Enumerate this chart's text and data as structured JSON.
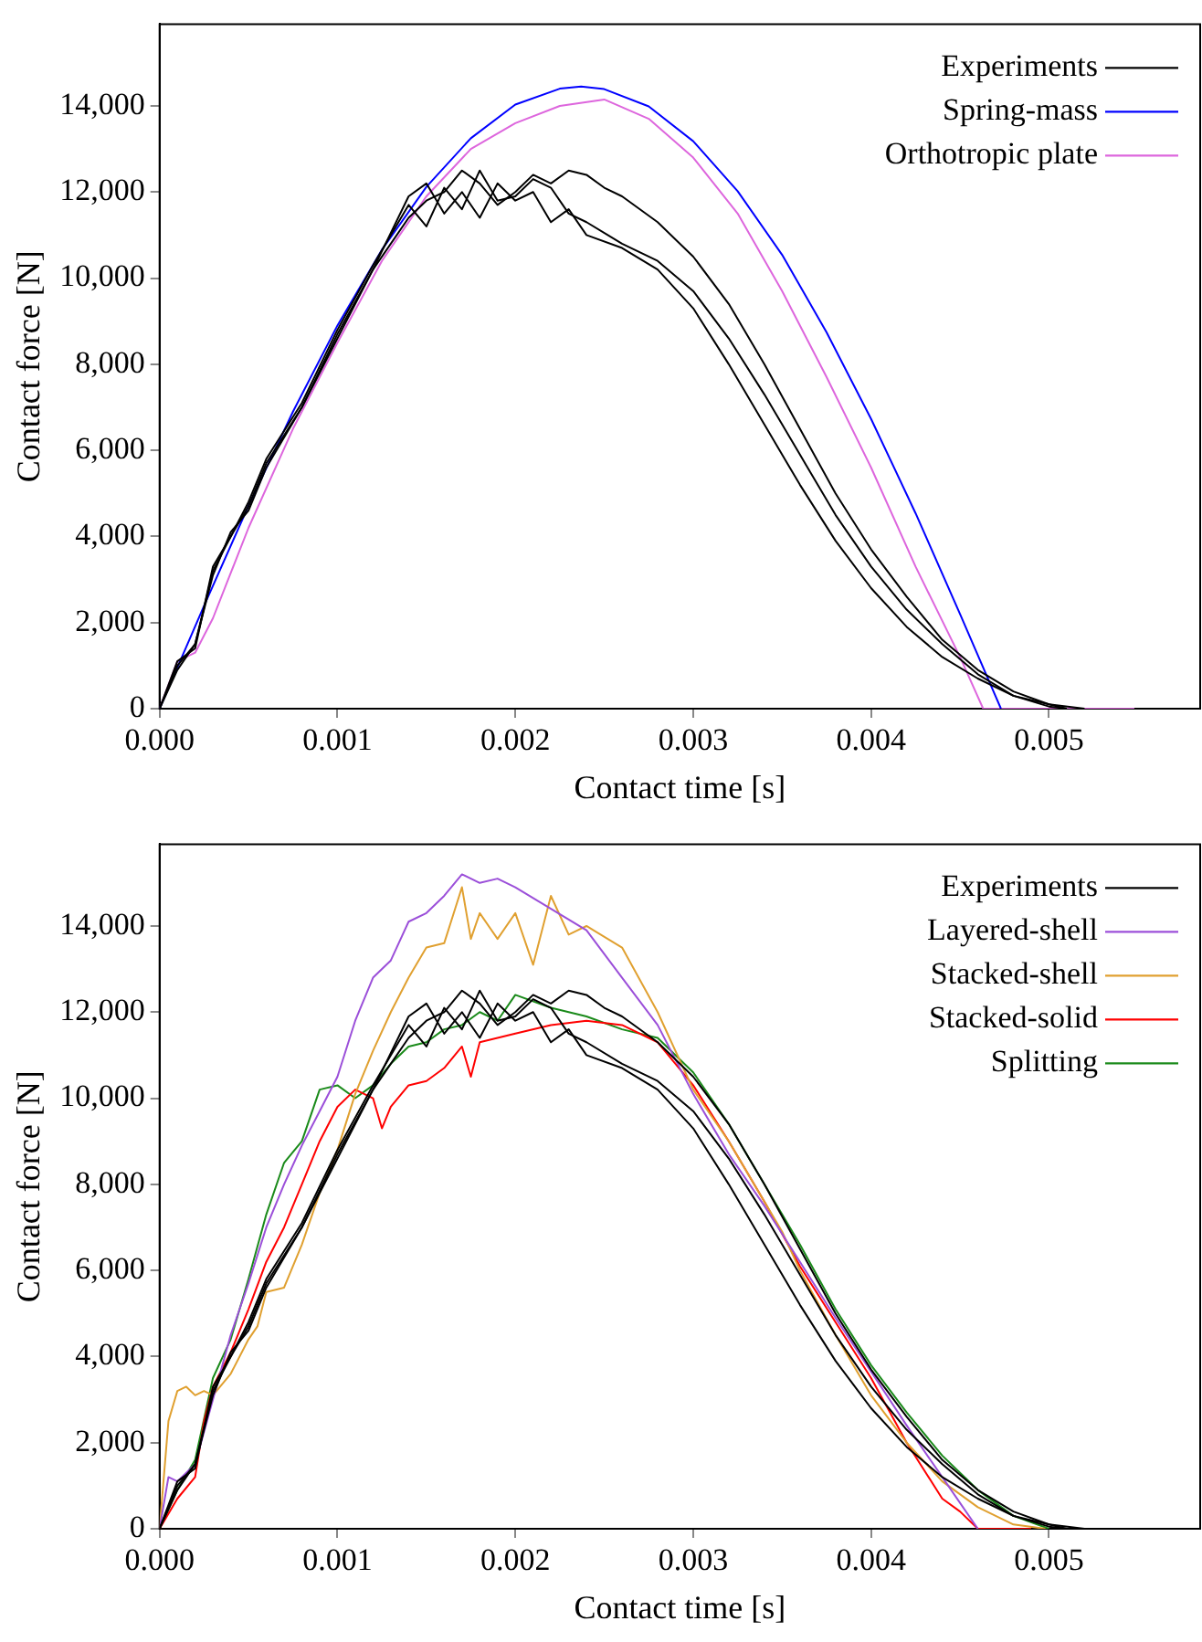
{
  "chart_data": [
    {
      "type": "line",
      "xlabel": "Contact time [s]",
      "ylabel": "Contact force [N]",
      "xlim": [
        0,
        0.00585
      ],
      "ylim": [
        0,
        15900
      ],
      "xticks": [
        {
          "value": 0,
          "label": "0.000"
        },
        {
          "value": 0.001,
          "label": "0.001"
        },
        {
          "value": 0.002,
          "label": "0.002"
        },
        {
          "value": 0.003,
          "label": "0.003"
        },
        {
          "value": 0.004,
          "label": "0.004"
        },
        {
          "value": 0.005,
          "label": "0.005"
        }
      ],
      "yticks": [
        {
          "value": 0,
          "label": "0"
        },
        {
          "value": 2000,
          "label": "2,000"
        },
        {
          "value": 4000,
          "label": "4,000"
        },
        {
          "value": 6000,
          "label": "6,000"
        },
        {
          "value": 8000,
          "label": "8,000"
        },
        {
          "value": 10000,
          "label": "10,000"
        },
        {
          "value": 12000,
          "label": "12,000"
        },
        {
          "value": 14000,
          "label": "14,000"
        }
      ],
      "grid": false,
      "legend": "top right",
      "marker": "none",
      "line_style": "solid",
      "series": [
        {
          "name": "Experiments",
          "color": "#000000",
          "x": [
            0,
            0.0001,
            0.0002,
            0.0003,
            0.0004,
            0.0005,
            0.0006,
            0.0008,
            0.001,
            0.0012,
            0.0014,
            0.0015,
            0.0016,
            0.0017,
            0.0018,
            0.0019,
            0.002,
            0.0021,
            0.0022,
            0.0023,
            0.0024,
            0.0025,
            0.0026,
            0.0028,
            0.003,
            0.0032,
            0.0034,
            0.0036,
            0.0038,
            0.004,
            0.0042,
            0.0044,
            0.0046,
            0.0048,
            0.005,
            0.0052
          ],
          "values": [
            0,
            1000,
            1500,
            3200,
            4000,
            4700,
            5700,
            7000,
            8700,
            10200,
            11400,
            11800,
            12000,
            12500,
            12200,
            11700,
            12000,
            12400,
            12200,
            12500,
            12400,
            12100,
            11900,
            11300,
            10500,
            9400,
            8000,
            6500,
            5000,
            3700,
            2600,
            1600,
            900,
            400,
            100,
            0
          ]
        },
        {
          "color": "#000000",
          "x": [
            0,
            0.0001,
            0.0002,
            0.0003,
            0.0004,
            0.0005,
            0.0006,
            0.0008,
            0.001,
            0.0012,
            0.0014,
            0.0015,
            0.0016,
            0.0017,
            0.0018,
            0.0019,
            0.002,
            0.0021,
            0.0022,
            0.0023,
            0.0024,
            0.0026,
            0.0028,
            0.003,
            0.0032,
            0.0034,
            0.0036,
            0.0038,
            0.004,
            0.0042,
            0.0044,
            0.0046,
            0.0048,
            0.005,
            0.0051
          ],
          "values": [
            0,
            1100,
            1400,
            3300,
            4000,
            4800,
            5800,
            7100,
            8800,
            10300,
            11700,
            11200,
            12100,
            11600,
            12500,
            11800,
            11900,
            12300,
            12100,
            11500,
            11300,
            10800,
            10400,
            9700,
            8600,
            7300,
            5900,
            4500,
            3300,
            2300,
            1500,
            800,
            300,
            50,
            0
          ]
        },
        {
          "color": "#000000",
          "x": [
            0,
            0.0001,
            0.0002,
            0.0003,
            0.0004,
            0.0005,
            0.0006,
            0.0008,
            0.001,
            0.0012,
            0.0014,
            0.0015,
            0.0016,
            0.0017,
            0.0018,
            0.0019,
            0.002,
            0.0021,
            0.0022,
            0.0023,
            0.0024,
            0.0026,
            0.0028,
            0.003,
            0.0032,
            0.0034,
            0.0036,
            0.0038,
            0.004,
            0.0042,
            0.0044,
            0.0046,
            0.0048,
            0.005,
            0.0051
          ],
          "values": [
            0,
            900,
            1500,
            3100,
            4100,
            4600,
            5600,
            7000,
            8600,
            10200,
            11900,
            12200,
            11500,
            12000,
            11400,
            12200,
            11800,
            12000,
            11300,
            11600,
            11000,
            10700,
            10200,
            9300,
            8000,
            6600,
            5200,
            3900,
            2800,
            1900,
            1200,
            700,
            300,
            100,
            0
          ]
        },
        {
          "name": "Spring-mass",
          "color": "#0000ff",
          "x": [
            0,
            0.00025,
            0.0005,
            0.00075,
            0.001,
            0.00125,
            0.0015,
            0.00175,
            0.002,
            0.00225,
            0.00237,
            0.0025,
            0.00275,
            0.003,
            0.00325,
            0.0035,
            0.00375,
            0.004,
            0.00425,
            0.0045,
            0.00473
          ],
          "values": [
            0,
            2390,
            4710,
            6900,
            8900,
            10660,
            12120,
            13250,
            14030,
            14400,
            14450,
            14390,
            13990,
            13180,
            12020,
            10540,
            8740,
            6730,
            4540,
            2200,
            0
          ]
        },
        {
          "name": "Orthotropic plate",
          "color": "#dd66dd",
          "x": [
            0,
            0.0001,
            0.0002,
            0.0003,
            0.0005,
            0.00075,
            0.001,
            0.00125,
            0.0015,
            0.00175,
            0.002,
            0.00225,
            0.0025,
            0.00275,
            0.003,
            0.00325,
            0.0035,
            0.00375,
            0.004,
            0.00425,
            0.0045,
            0.00463,
            0.00548
          ],
          "values": [
            0,
            1100,
            1300,
            2100,
            4200,
            6500,
            8500,
            10400,
            11900,
            13000,
            13600,
            14000,
            14150,
            13700,
            12800,
            11500,
            9700,
            7700,
            5600,
            3300,
            1200,
            0,
            0
          ]
        }
      ]
    },
    {
      "type": "line",
      "xlabel": "Contact time [s]",
      "ylabel": "Contact force [N]",
      "xlim": [
        0,
        0.00585
      ],
      "ylim": [
        0,
        15900
      ],
      "xticks": [
        {
          "value": 0,
          "label": "0.000"
        },
        {
          "value": 0.001,
          "label": "0.001"
        },
        {
          "value": 0.002,
          "label": "0.002"
        },
        {
          "value": 0.003,
          "label": "0.003"
        },
        {
          "value": 0.004,
          "label": "0.004"
        },
        {
          "value": 0.005,
          "label": "0.005"
        }
      ],
      "yticks": [
        {
          "value": 0,
          "label": "0"
        },
        {
          "value": 2000,
          "label": "2,000"
        },
        {
          "value": 4000,
          "label": "4,000"
        },
        {
          "value": 6000,
          "label": "6,000"
        },
        {
          "value": 8000,
          "label": "8,000"
        },
        {
          "value": 10000,
          "label": "10,000"
        },
        {
          "value": 12000,
          "label": "12,000"
        },
        {
          "value": 14000,
          "label": "14,000"
        }
      ],
      "grid": false,
      "legend": "top right",
      "marker": "none",
      "line_style": "solid",
      "series": [
        {
          "name": "Experiments",
          "color": "#000000",
          "x": [
            0,
            0.0001,
            0.0002,
            0.0003,
            0.0004,
            0.0005,
            0.0006,
            0.0008,
            0.001,
            0.0012,
            0.0014,
            0.0015,
            0.0016,
            0.0017,
            0.0018,
            0.0019,
            0.002,
            0.0021,
            0.0022,
            0.0023,
            0.0024,
            0.0025,
            0.0026,
            0.0028,
            0.003,
            0.0032,
            0.0034,
            0.0036,
            0.0038,
            0.004,
            0.0042,
            0.0044,
            0.0046,
            0.0048,
            0.005,
            0.0052
          ],
          "values": [
            0,
            1000,
            1500,
            3200,
            4000,
            4700,
            5700,
            7000,
            8700,
            10200,
            11400,
            11800,
            12000,
            12500,
            12200,
            11700,
            12000,
            12400,
            12200,
            12500,
            12400,
            12100,
            11900,
            11300,
            10500,
            9400,
            8000,
            6500,
            5000,
            3700,
            2600,
            1600,
            900,
            400,
            100,
            0
          ]
        },
        {
          "color": "#000000",
          "x": [
            0,
            0.0001,
            0.0002,
            0.0003,
            0.0004,
            0.0005,
            0.0006,
            0.0008,
            0.001,
            0.0012,
            0.0014,
            0.0015,
            0.0016,
            0.0017,
            0.0018,
            0.0019,
            0.002,
            0.0021,
            0.0022,
            0.0023,
            0.0024,
            0.0026,
            0.0028,
            0.003,
            0.0032,
            0.0034,
            0.0036,
            0.0038,
            0.004,
            0.0042,
            0.0044,
            0.0046,
            0.0048,
            0.005,
            0.0051
          ],
          "values": [
            0,
            1100,
            1400,
            3300,
            4000,
            4800,
            5800,
            7100,
            8800,
            10300,
            11700,
            11200,
            12100,
            11600,
            12500,
            11800,
            11900,
            12300,
            12100,
            11500,
            11300,
            10800,
            10400,
            9700,
            8600,
            7300,
            5900,
            4500,
            3300,
            2300,
            1500,
            800,
            300,
            50,
            0
          ]
        },
        {
          "color": "#000000",
          "x": [
            0,
            0.0001,
            0.0002,
            0.0003,
            0.0004,
            0.0005,
            0.0006,
            0.0008,
            0.001,
            0.0012,
            0.0014,
            0.0015,
            0.0016,
            0.0017,
            0.0018,
            0.0019,
            0.002,
            0.0021,
            0.0022,
            0.0023,
            0.0024,
            0.0026,
            0.0028,
            0.003,
            0.0032,
            0.0034,
            0.0036,
            0.0038,
            0.004,
            0.0042,
            0.0044,
            0.0046,
            0.0048,
            0.005,
            0.0051
          ],
          "values": [
            0,
            900,
            1500,
            3100,
            4100,
            4600,
            5600,
            7000,
            8600,
            10200,
            11900,
            12200,
            11500,
            12000,
            11400,
            12200,
            11800,
            12000,
            11300,
            11600,
            11000,
            10700,
            10200,
            9300,
            8000,
            6600,
            5200,
            3900,
            2800,
            1900,
            1200,
            700,
            300,
            100,
            0
          ]
        },
        {
          "name": "Layered-shell",
          "color": "#9b4fd9",
          "x": [
            0,
            5e-05,
            0.0001,
            0.0002,
            0.0003,
            0.0004,
            0.0005,
            0.0006,
            0.0007,
            0.0008,
            0.0009,
            0.001,
            0.0011,
            0.0012,
            0.0013,
            0.0014,
            0.0015,
            0.0016,
            0.0017,
            0.0018,
            0.0019,
            0.002,
            0.0022,
            0.0024,
            0.0026,
            0.0028,
            0.003,
            0.0032,
            0.0034,
            0.0036,
            0.0038,
            0.004,
            0.0042,
            0.0044,
            0.0046
          ],
          "values": [
            0,
            1200,
            1100,
            1500,
            3000,
            4500,
            5700,
            7000,
            8000,
            8900,
            9700,
            10500,
            11800,
            12800,
            13200,
            14100,
            14300,
            14700,
            15200,
            15000,
            15100,
            14900,
            14400,
            13900,
            12800,
            11700,
            10100,
            8700,
            7500,
            6200,
            4900,
            3650,
            2400,
            1200,
            0
          ]
        },
        {
          "name": "Stacked-shell",
          "color": "#e0a030",
          "x": [
            0,
            5e-05,
            0.0001,
            0.00015,
            0.0002,
            0.00025,
            0.0003,
            0.0004,
            0.0005,
            0.00055,
            0.0006,
            0.0007,
            0.0008,
            0.0009,
            0.001,
            0.0011,
            0.0012,
            0.0013,
            0.0014,
            0.0015,
            0.0016,
            0.0017,
            0.00175,
            0.0018,
            0.0019,
            0.002,
            0.0021,
            0.0022,
            0.0023,
            0.0024,
            0.0026,
            0.0028,
            0.003,
            0.0032,
            0.0034,
            0.0035,
            0.0036,
            0.0038,
            0.004,
            0.0042,
            0.0044,
            0.0046,
            0.0048,
            0.00498
          ],
          "values": [
            0,
            2500,
            3200,
            3300,
            3100,
            3200,
            3100,
            3600,
            4400,
            4700,
            5500,
            5600,
            6600,
            7800,
            8800,
            10100,
            11100,
            12000,
            12800,
            13500,
            13600,
            14900,
            13700,
            14300,
            13700,
            14300,
            13100,
            14700,
            13800,
            14000,
            13500,
            12000,
            10200,
            9000,
            7600,
            6900,
            6000,
            4500,
            3100,
            2000,
            1100,
            500,
            100,
            0
          ]
        },
        {
          "name": "Stacked-solid",
          "color": "#ff0000",
          "x": [
            0,
            0.0001,
            0.0002,
            0.00025,
            0.0003,
            0.0004,
            0.0005,
            0.0006,
            0.0007,
            0.0008,
            0.0009,
            0.001,
            0.0011,
            0.0012,
            0.00125,
            0.0013,
            0.0014,
            0.0015,
            0.0016,
            0.0017,
            0.00175,
            0.0018,
            0.002,
            0.0022,
            0.0024,
            0.0026,
            0.0028,
            0.003,
            0.0032,
            0.0034,
            0.0036,
            0.0038,
            0.004,
            0.0042,
            0.0044,
            0.0045,
            0.0046,
            0.0049
          ],
          "values": [
            0,
            700,
            1200,
            2500,
            3300,
            4100,
            5100,
            6200,
            7000,
            8000,
            9000,
            9800,
            10200,
            10000,
            9300,
            9800,
            10300,
            10400,
            10700,
            11200,
            10500,
            11300,
            11500,
            11700,
            11800,
            11700,
            11300,
            10300,
            9000,
            7600,
            6100,
            4800,
            3500,
            2000,
            700,
            400,
            0,
            0
          ]
        },
        {
          "name": "Splitting",
          "color": "#1a8a1a",
          "x": [
            0,
            0.0001,
            0.0002,
            0.0003,
            0.0004,
            0.0005,
            0.0006,
            0.0007,
            0.0008,
            0.0009,
            0.001,
            0.0011,
            0.0012,
            0.0013,
            0.0014,
            0.0015,
            0.0016,
            0.0017,
            0.0018,
            0.0019,
            0.002,
            0.0022,
            0.0024,
            0.0026,
            0.0028,
            0.003,
            0.0032,
            0.0034,
            0.0036,
            0.0038,
            0.004,
            0.0042,
            0.0044,
            0.0046,
            0.0048,
            0.005
          ],
          "values": [
            0,
            900,
            1600,
            3500,
            4400,
            5800,
            7300,
            8500,
            9000,
            10200,
            10300,
            10000,
            10300,
            10800,
            11200,
            11300,
            11600,
            11700,
            12000,
            11800,
            12400,
            12100,
            11900,
            11600,
            11400,
            10600,
            9400,
            8000,
            6600,
            5100,
            3800,
            2700,
            1700,
            900,
            300,
            0
          ]
        }
      ]
    }
  ]
}
